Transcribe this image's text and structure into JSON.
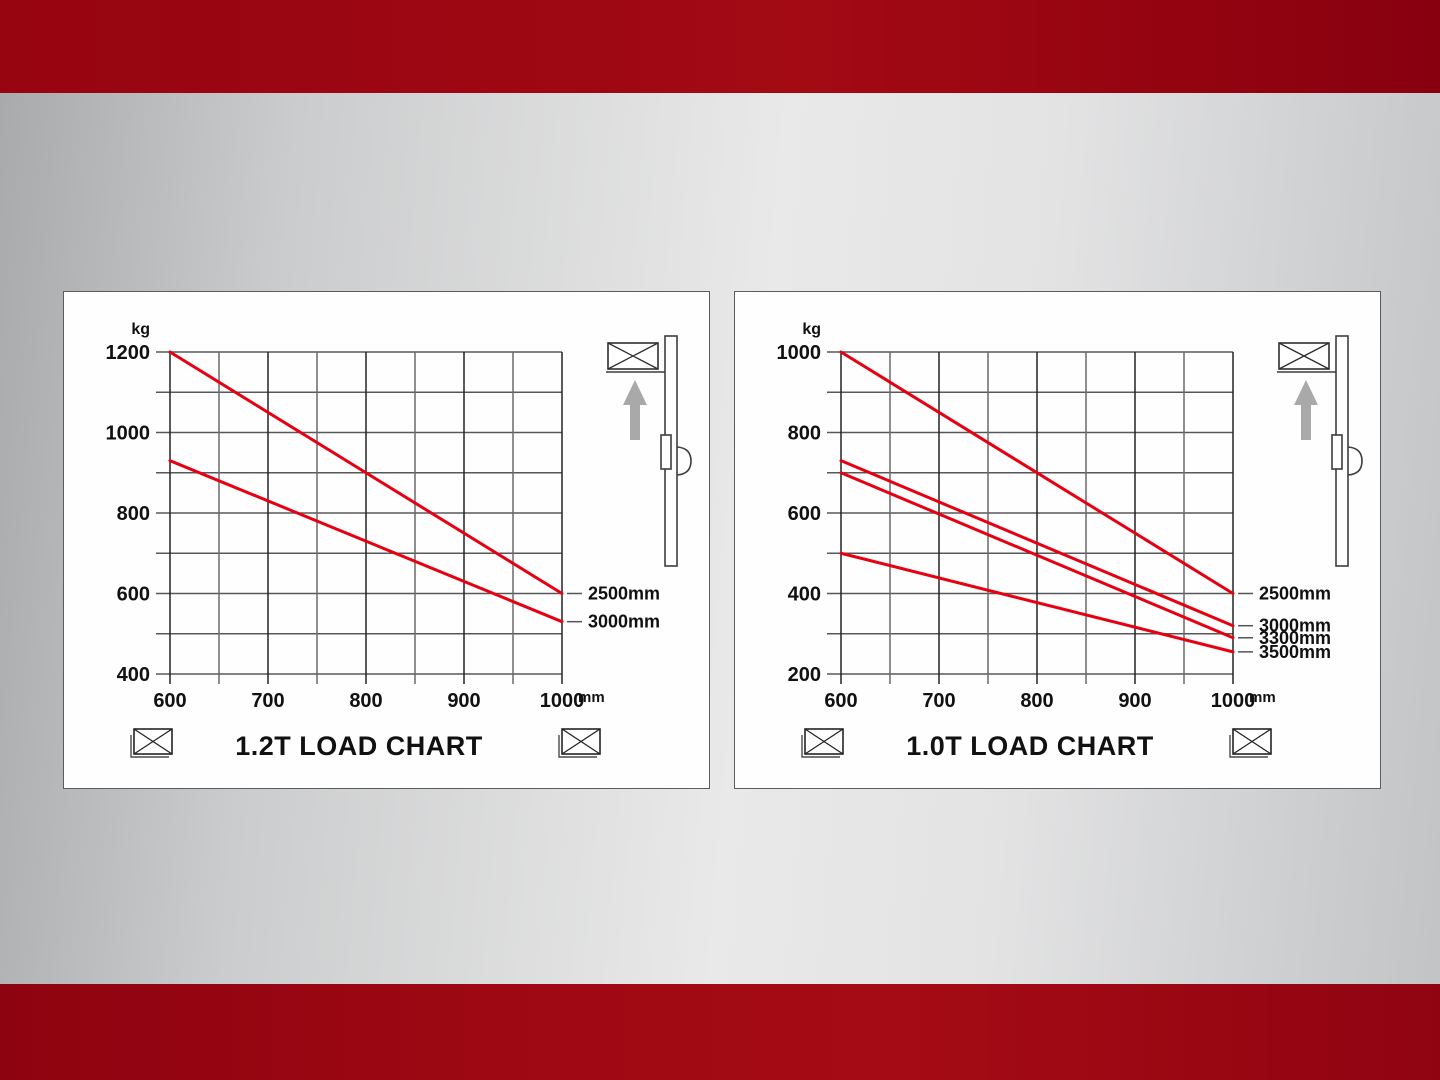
{
  "colors": {
    "banner_red": "#9a0512",
    "line_red": "#e60012",
    "grid_major": "#232323",
    "grid_minor": "#6a6a6c",
    "grid_horizontal": "#58585a",
    "text_black": "#111111",
    "arrow_gray": "#a9a9a9"
  },
  "icons": {
    "pallet_load": "crossed-box-icon",
    "lift_direction": "up-arrow-icon",
    "stacker": "pallet-stacker-mast-icon"
  },
  "chart_data": [
    {
      "type": "line",
      "title": "1.2T LOAD CHART",
      "ylabel_unit": "kg",
      "xlabel_unit": "mm",
      "x_min": 600,
      "x_max": 1000,
      "y_min": 400,
      "y_max": 1200,
      "x_grid_step": 50,
      "y_grid_step": 100,
      "x_ticks": [
        600,
        700,
        800,
        900,
        1000
      ],
      "y_ticks": [
        400,
        600,
        800,
        1000,
        1200
      ],
      "grid": true,
      "legend_position": "right-of-line-ends",
      "series": [
        {
          "name": "2500mm",
          "points": [
            [
              600,
              1200
            ],
            [
              1000,
              600
            ]
          ]
        },
        {
          "name": "3000mm",
          "points": [
            [
              600,
              930
            ],
            [
              1000,
              530
            ]
          ]
        }
      ]
    },
    {
      "type": "line",
      "title": "1.0T LOAD CHART",
      "ylabel_unit": "kg",
      "xlabel_unit": "mm",
      "x_min": 600,
      "x_max": 1000,
      "y_min": 200,
      "y_max": 1000,
      "x_grid_step": 50,
      "y_grid_step": 100,
      "x_ticks": [
        600,
        700,
        800,
        900,
        1000
      ],
      "y_ticks": [
        200,
        400,
        600,
        800,
        1000
      ],
      "grid": true,
      "legend_position": "right-of-line-ends",
      "series": [
        {
          "name": "2500mm",
          "points": [
            [
              600,
              1000
            ],
            [
              1000,
              400
            ]
          ]
        },
        {
          "name": "3000mm",
          "points": [
            [
              600,
              730
            ],
            [
              1000,
              320
            ]
          ]
        },
        {
          "name": "3300mm",
          "points": [
            [
              600,
              700
            ],
            [
              1000,
              290
            ]
          ]
        },
        {
          "name": "3500mm",
          "points": [
            [
              600,
              500
            ],
            [
              1000,
              255
            ]
          ]
        }
      ]
    }
  ]
}
